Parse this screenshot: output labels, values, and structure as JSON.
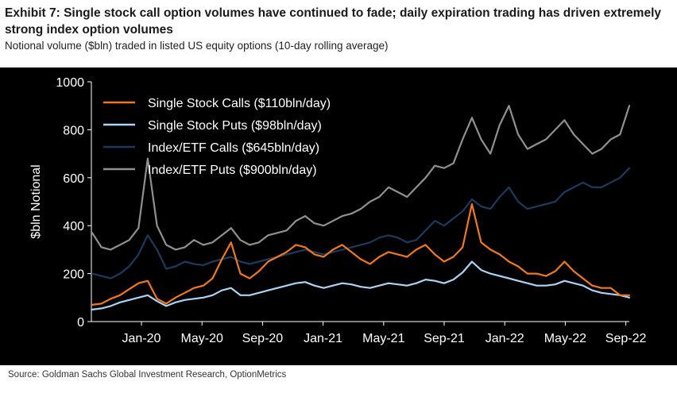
{
  "header": {
    "title": "Exhibit 7: Single stock call option volumes have continued to fade; daily expiration trading has driven extremely strong index option volumes",
    "subtitle": "Notional volume ($bln) traded in listed US equity options (10-day rolling average)"
  },
  "source": "Source: Goldman Sachs Global Investment Research, OptionMetrics",
  "chart_data": {
    "type": "line",
    "ylabel": "$bln Notional",
    "ylim": [
      0,
      1000
    ],
    "yticks": [
      "0",
      "200",
      "400",
      "600",
      "800",
      "1000"
    ],
    "xlabels": [
      "Jan-20",
      "May-20",
      "Sep-20",
      "Jan-21",
      "May-21",
      "Sep-21",
      "Jan-22",
      "May-22",
      "Sep-22"
    ],
    "x_start": "2019-10",
    "x_end": "2022-09",
    "grid": false,
    "legend_position": "top-left",
    "background": "#000000",
    "series": [
      {
        "name": "Single Stock Calls ($110bln/day)",
        "color": "#f07820",
        "values": [
          70,
          75,
          95,
          110,
          135,
          160,
          170,
          95,
          75,
          100,
          120,
          140,
          150,
          180,
          260,
          330,
          200,
          180,
          210,
          250,
          270,
          290,
          320,
          310,
          280,
          270,
          300,
          320,
          290,
          260,
          240,
          270,
          290,
          280,
          270,
          300,
          320,
          280,
          250,
          270,
          310,
          490,
          330,
          300,
          280,
          250,
          230,
          200,
          200,
          190,
          210,
          250,
          210,
          180,
          150,
          140,
          140,
          110,
          110
        ]
      },
      {
        "name": "Single Stock Puts ($98bln/day)",
        "color": "#aad4f5",
        "values": [
          50,
          55,
          65,
          80,
          90,
          100,
          110,
          85,
          65,
          80,
          90,
          95,
          100,
          110,
          130,
          140,
          110,
          110,
          120,
          130,
          140,
          150,
          160,
          165,
          150,
          140,
          150,
          160,
          155,
          145,
          140,
          150,
          160,
          155,
          150,
          160,
          175,
          170,
          160,
          175,
          205,
          250,
          215,
          200,
          190,
          180,
          170,
          160,
          150,
          150,
          155,
          170,
          160,
          150,
          130,
          120,
          115,
          110,
          100
        ]
      },
      {
        "name": "Index/ETF Calls ($645bln/day)",
        "color": "#1c3a5c",
        "values": [
          200,
          190,
          180,
          200,
          230,
          280,
          360,
          300,
          220,
          230,
          250,
          240,
          235,
          250,
          260,
          270,
          250,
          240,
          250,
          260,
          270,
          280,
          290,
          300,
          290,
          280,
          290,
          300,
          310,
          320,
          330,
          350,
          360,
          350,
          330,
          340,
          380,
          420,
          400,
          430,
          460,
          510,
          480,
          470,
          520,
          560,
          500,
          470,
          480,
          490,
          500,
          540,
          560,
          580,
          560,
          560,
          580,
          600,
          640
        ]
      },
      {
        "name": "Index/ETF Puts ($900bln/day)",
        "color": "#909090",
        "values": [
          370,
          310,
          300,
          320,
          340,
          390,
          680,
          400,
          320,
          300,
          310,
          340,
          320,
          330,
          360,
          390,
          340,
          320,
          330,
          360,
          370,
          380,
          420,
          440,
          410,
          400,
          420,
          440,
          450,
          470,
          500,
          520,
          560,
          540,
          520,
          560,
          600,
          650,
          640,
          660,
          760,
          850,
          760,
          700,
          820,
          900,
          780,
          720,
          740,
          760,
          800,
          840,
          780,
          740,
          700,
          720,
          760,
          780,
          900
        ]
      }
    ]
  }
}
